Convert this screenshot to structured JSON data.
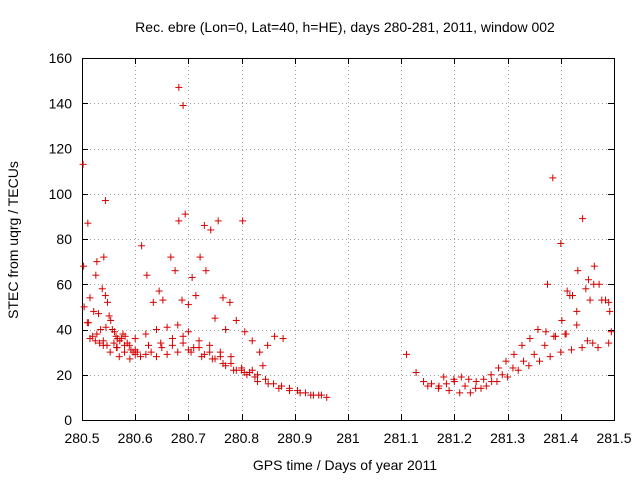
{
  "chart_data": {
    "type": "scatter",
    "title": "Rec. ebre (Lon=0, Lat=40, h=HE), days 280-281, 2011, window 002",
    "xlabel": "GPS time / Days of year 2011",
    "ylabel": "STEC from uqrg / TECUs",
    "xlim": [
      280.5,
      281.5
    ],
    "ylim": [
      0,
      160
    ],
    "xticks": [
      280.5,
      280.6,
      280.7,
      280.8,
      280.9,
      281,
      281.1,
      281.2,
      281.3,
      281.4,
      281.5
    ],
    "xtick_labels": [
      "280.5",
      "280.6",
      "280.7",
      "280.8",
      "280.9",
      "281",
      "281.1",
      "281.2",
      "281.3",
      "281.4",
      "281.5"
    ],
    "yticks": [
      0,
      20,
      40,
      60,
      80,
      100,
      120,
      140,
      160
    ],
    "ytick_labels": [
      "0",
      "20",
      "40",
      "60",
      "80",
      "100",
      "120",
      "140",
      "160"
    ],
    "grid": true,
    "marker": "plus",
    "color": "#d40000",
    "series": [
      {
        "x": [
          280.502,
          280.503,
          280.504,
          280.511,
          280.512,
          280.515,
          280.522,
          280.526,
          280.528,
          280.531,
          280.535,
          280.538,
          280.541,
          280.544,
          280.548,
          280.551,
          280.554,
          280.557,
          280.561,
          280.564,
          280.567,
          280.571,
          280.574,
          280.577,
          280.581,
          280.585,
          280.589,
          280.592,
          280.596,
          280.6,
          280.515,
          280.528,
          280.533,
          280.547,
          280.566,
          280.58,
          280.604,
          280.62,
          280.64,
          280.66,
          280.68,
          280.7,
          280.72,
          280.74,
          280.76,
          280.78,
          280.8,
          280.815,
          280.83,
          280.845,
          280.86,
          280.875,
          280.89,
          280.905,
          280.92,
          280.935,
          280.95,
          280.96,
          280.525,
          280.54,
          280.553,
          280.57,
          280.59,
          280.61,
          280.63,
          280.65,
          280.67,
          280.69,
          280.71,
          280.73,
          280.75,
          280.77,
          280.79,
          280.81,
          280.83,
          280.85,
          280.87,
          280.89,
          280.91,
          280.93,
          280.945,
          280.52,
          280.54,
          280.56,
          280.58,
          280.6,
          280.62,
          280.64,
          280.66,
          280.68,
          280.7,
          280.72,
          280.74,
          280.76,
          280.78,
          280.8,
          280.82,
          280.84,
          280.51,
          280.545,
          280.565,
          280.6,
          280.625,
          280.648,
          280.67,
          280.69,
          280.705,
          280.725,
          280.745,
          280.765,
          280.785,
          280.805,
          280.825,
          280.612,
          280.622,
          280.634,
          280.645,
          280.652,
          280.667,
          280.675,
          280.682,
          280.688,
          280.694,
          280.7,
          280.707,
          280.714,
          280.722,
          280.73,
          280.742,
          280.756,
          280.765,
          280.778,
          280.79,
          280.806,
          280.82,
          280.834,
          280.849,
          280.862,
          280.878,
          280.682,
          280.69,
          280.544,
          280.733,
          280.75,
          280.77,
          280.802,
          281.11,
          281.128,
          281.142,
          281.157,
          281.171,
          281.185,
          281.199,
          281.213,
          281.227,
          281.241,
          281.255,
          281.269,
          281.283,
          281.297,
          281.312,
          281.327,
          281.342,
          281.357,
          281.372,
          281.387,
          281.402,
          281.417,
          281.432,
          281.447,
          281.462,
          281.477,
          281.492,
          281.15,
          281.17,
          281.19,
          281.21,
          281.23,
          281.25,
          281.27,
          281.29,
          281.31,
          281.33,
          281.35,
          281.37,
          281.39,
          281.41,
          281.43,
          281.45,
          281.47,
          281.49,
          281.18,
          281.2,
          281.22,
          281.24,
          281.26,
          281.28,
          281.3,
          281.32,
          281.34,
          281.36,
          281.38,
          281.4,
          281.42,
          281.44,
          281.46,
          281.385,
          281.4,
          281.412,
          281.422,
          281.43,
          281.441,
          281.452,
          281.463,
          281.472,
          281.484,
          281.495,
          281.375,
          281.408,
          281.455,
          281.49
        ],
        "y": [
          113,
          68,
          50,
          87,
          43,
          36,
          48,
          64,
          70,
          47,
          40,
          58,
          72,
          55,
          52,
          46,
          44,
          40,
          39,
          37,
          36,
          35,
          36,
          38,
          37,
          34,
          33,
          31,
          30,
          29,
          54,
          38,
          34,
          33,
          32,
          30,
          30,
          29,
          28,
          29,
          30,
          31,
          32,
          30,
          28,
          25,
          22,
          21,
          20,
          18,
          16,
          15,
          14,
          13,
          12,
          11,
          11,
          10,
          35,
          33,
          30,
          28,
          27,
          28,
          30,
          32,
          33,
          34,
          32,
          29,
          27,
          24,
          22,
          20,
          17,
          16,
          14,
          13,
          12,
          11,
          11,
          37,
          35,
          34,
          33,
          36,
          38,
          40,
          41,
          42,
          39,
          35,
          33,
          30,
          28,
          23,
          22,
          24,
          43,
          41,
          32,
          31,
          33,
          34,
          36,
          37,
          30,
          28,
          27,
          25,
          22,
          21,
          19,
          77,
          64,
          52,
          57,
          53,
          72,
          66,
          88,
          53,
          91,
          51,
          63,
          55,
          72,
          86,
          84,
          88,
          54,
          52,
          44,
          39,
          35,
          30,
          33,
          37,
          36,
          147,
          139,
          97,
          66,
          45,
          40,
          88,
          29,
          21,
          17,
          16,
          15,
          16,
          18,
          19,
          18,
          17,
          18,
          20,
          23,
          26,
          29,
          33,
          36,
          40,
          39,
          37,
          44,
          55,
          66,
          58,
          60,
          53,
          48,
          15,
          14,
          13,
          12,
          12,
          14,
          17,
          20,
          23,
          26,
          29,
          33,
          37,
          38,
          42,
          35,
          32,
          34,
          19,
          17,
          15,
          14,
          15,
          17,
          19,
          22,
          24,
          26,
          28,
          30,
          31,
          32,
          34,
          107,
          78,
          57,
          55,
          48,
          89,
          62,
          68,
          60,
          53,
          39,
          60,
          38,
          53,
          52
        ]
      }
    ]
  }
}
